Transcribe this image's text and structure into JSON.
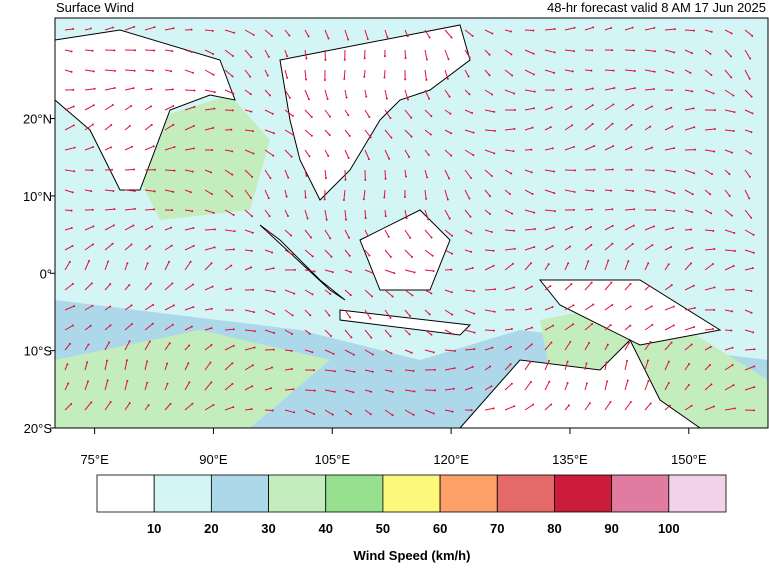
{
  "header": {
    "title": "Surface Wind",
    "subtitle": "48-hr forecast valid 8 AM 17 Jun 2025"
  },
  "map": {
    "lonlim": [
      70,
      160
    ],
    "latlim": [
      -20,
      33
    ],
    "lon_ticks": [
      {
        "value": 75,
        "label": "75°E"
      },
      {
        "value": 90,
        "label": "90°E"
      },
      {
        "value": 105,
        "label": "105°E"
      },
      {
        "value": 120,
        "label": "120°E"
      },
      {
        "value": 135,
        "label": "135°E"
      },
      {
        "value": 150,
        "label": "150°E"
      }
    ],
    "lat_ticks": [
      {
        "value": 20,
        "label": "20°N"
      },
      {
        "value": 10,
        "label": "10°N"
      },
      {
        "value": 0,
        "label": "0°"
      },
      {
        "value": -10,
        "label": "10°S"
      },
      {
        "value": -20,
        "label": "20°S"
      }
    ]
  },
  "colorbar": {
    "title": "Wind Speed (km/h)",
    "colors": [
      "#ffffff",
      "#d4f5f5",
      "#acd8ea",
      "#c4edbd",
      "#97e08f",
      "#fdf87c",
      "#fca06a",
      "#e46a6a",
      "#cc1c3c",
      "#e07ca0",
      "#f2d2ea"
    ],
    "ticks": [
      10,
      20,
      30,
      40,
      50,
      60,
      70,
      80,
      90,
      100
    ]
  }
}
